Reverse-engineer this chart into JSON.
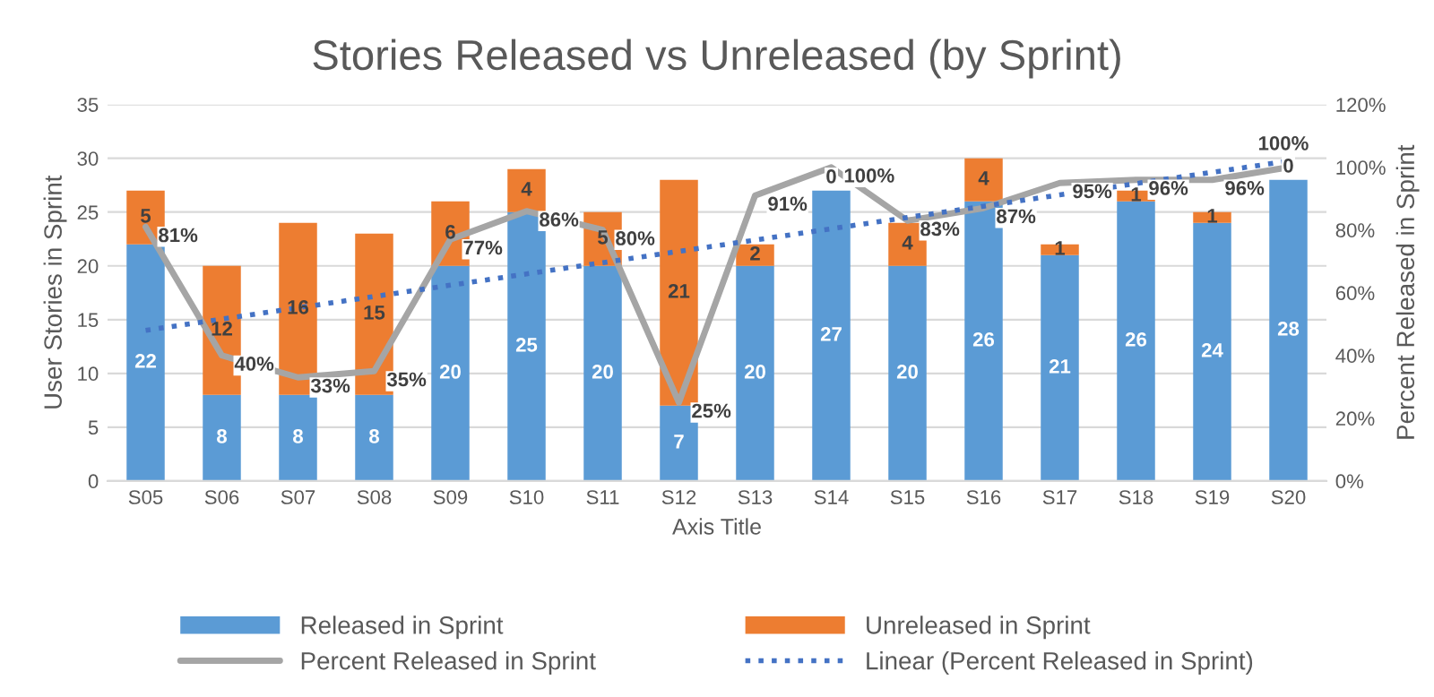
{
  "chart_data": {
    "type": "bar",
    "title": "Stories Released vs Unreleased (by Sprint)",
    "xlabel": "Axis Title",
    "ylabel": "User Stories in Sprint",
    "y2label": "Percent Released in Sprint",
    "categories": [
      "S05",
      "S06",
      "S07",
      "S08",
      "S09",
      "S10",
      "S11",
      "S12",
      "S13",
      "S14",
      "S15",
      "S16",
      "S17",
      "S18",
      "S19",
      "S20"
    ],
    "stacked": true,
    "grid": "y",
    "legend": "bottom",
    "series": [
      {
        "name": "Released in Sprint",
        "color": "#5b9bd5",
        "values": [
          22,
          8,
          8,
          8,
          20,
          25,
          20,
          7,
          20,
          27,
          20,
          26,
          21,
          26,
          24,
          28
        ],
        "value_labels": [
          "22",
          "8",
          "8",
          "8",
          "20",
          "25",
          "20",
          "7",
          "20",
          "27",
          "20",
          "26",
          "21",
          "26",
          "24",
          "28"
        ]
      },
      {
        "name": "Unreleased in Sprint",
        "color": "#ed7d31",
        "values": [
          5,
          12,
          16,
          15,
          6,
          4,
          5,
          21,
          2,
          0,
          4,
          4,
          1,
          1,
          1,
          0
        ],
        "value_labels": [
          "5",
          "12",
          "16",
          "15",
          "6",
          "4",
          "5",
          "21",
          "2",
          "0",
          "4",
          "4",
          "1",
          "1",
          "1",
          "0"
        ]
      },
      {
        "name": "Percent Released in Sprint",
        "type": "line",
        "axis": "y2",
        "color": "#a5a5a5",
        "line_style": "solid",
        "values": [
          81,
          40,
          33,
          35,
          77,
          86,
          80,
          25,
          91,
          100,
          83,
          87,
          95,
          96,
          96,
          100
        ],
        "value_labels": [
          "81%",
          "40%",
          "33%",
          "35%",
          "77%",
          "86%",
          "80%",
          "25%",
          "91%",
          "100%",
          "83%",
          "87%",
          "95%",
          "96%",
          "96%",
          "100%"
        ]
      },
      {
        "name": "Linear (Percent Released in Sprint)",
        "type": "line",
        "axis": "y2",
        "color": "#4472c4",
        "line_style": "dotted",
        "values": [
          48,
          51.6,
          55.2,
          58.8,
          62.4,
          66,
          69.6,
          73.2,
          76.8,
          80.4,
          84,
          87.6,
          91.2,
          94.8,
          98.4,
          102
        ]
      }
    ],
    "ylim": [
      0,
      35
    ],
    "yticks": [
      0,
      5,
      10,
      15,
      20,
      25,
      30,
      35
    ],
    "y2lim": [
      0,
      120
    ],
    "y2ticks": [
      {
        "value": 0,
        "label": "0%"
      },
      {
        "value": 20,
        "label": "20%"
      },
      {
        "value": 40,
        "label": "40%"
      },
      {
        "value": 60,
        "label": "60%"
      },
      {
        "value": 80,
        "label": "80%"
      },
      {
        "value": 100,
        "label": "100%"
      },
      {
        "value": 120,
        "label": "120%"
      }
    ]
  }
}
